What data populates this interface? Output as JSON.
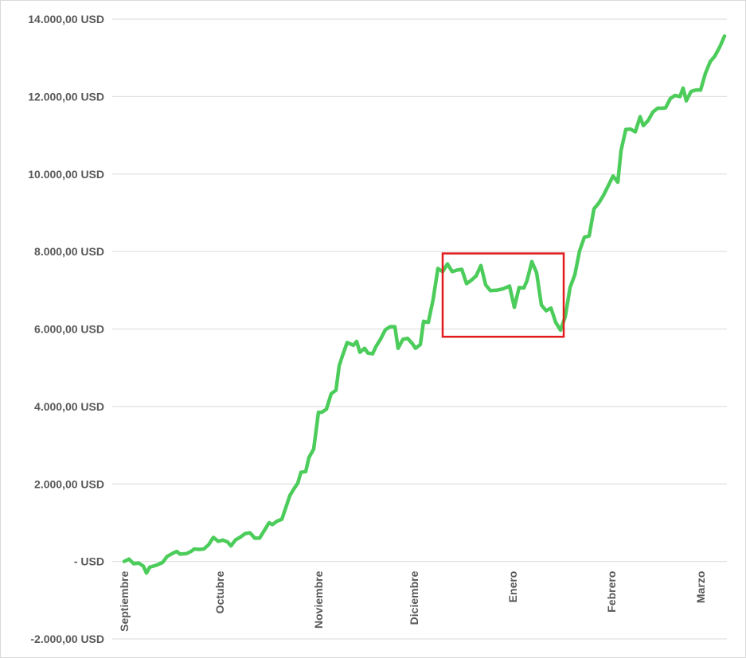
{
  "chart_data": {
    "type": "line",
    "title": "",
    "xlabel": "",
    "ylabel": "",
    "grid": true,
    "legend": "none",
    "ylim": [
      -2000,
      14000
    ],
    "yticks": [
      {
        "value": 14000,
        "label": "14.000,00 USD"
      },
      {
        "value": 12000,
        "label": "12.000,00 USD"
      },
      {
        "value": 10000,
        "label": "10.000,00 USD"
      },
      {
        "value": 8000,
        "label": "8.000,00 USD"
      },
      {
        "value": 6000,
        "label": "6.000,00 USD"
      },
      {
        "value": 4000,
        "label": "4.000,00 USD"
      },
      {
        "value": 2000,
        "label": "2.000,00 USD"
      },
      {
        "value": 0,
        "label": "-   USD"
      },
      {
        "value": -2000,
        "label": "-2.000,00 USD"
      }
    ],
    "month_ticks": [
      {
        "day": 0,
        "label": "Septiembre"
      },
      {
        "day": 30,
        "label": "Octubre"
      },
      {
        "day": 61,
        "label": "Noviembre"
      },
      {
        "day": 91,
        "label": "Diciembre"
      },
      {
        "day": 122,
        "label": "Enero"
      },
      {
        "day": 153,
        "label": "Febrero"
      },
      {
        "day": 181,
        "label": "Marzo"
      }
    ],
    "x_range_days": [
      0,
      193
    ],
    "series": [
      {
        "color": "#4ccc5a",
        "points": [
          [
            0,
            0
          ],
          [
            1.5,
            60
          ],
          [
            3,
            -60
          ],
          [
            4.5,
            -40
          ],
          [
            6,
            -120
          ],
          [
            7,
            -300
          ],
          [
            8,
            -150
          ],
          [
            10,
            -100
          ],
          [
            12,
            -30
          ],
          [
            13.5,
            130
          ],
          [
            15,
            200
          ],
          [
            16.5,
            260
          ],
          [
            17.5,
            190
          ],
          [
            19.5,
            200
          ],
          [
            21,
            260
          ],
          [
            22,
            320
          ],
          [
            23.5,
            310
          ],
          [
            25,
            320
          ],
          [
            26.5,
            430
          ],
          [
            28,
            620
          ],
          [
            29.5,
            520
          ],
          [
            31,
            550
          ],
          [
            32.5,
            500
          ],
          [
            33.5,
            400
          ],
          [
            35,
            560
          ],
          [
            36.5,
            630
          ],
          [
            38,
            720
          ],
          [
            39.5,
            740
          ],
          [
            41,
            600
          ],
          [
            42.5,
            600
          ],
          [
            44,
            800
          ],
          [
            45.5,
            1000
          ],
          [
            46.5,
            950
          ],
          [
            48,
            1040
          ],
          [
            49.5,
            1090
          ],
          [
            51,
            1450
          ],
          [
            52,
            1700
          ],
          [
            53.5,
            1900
          ],
          [
            54.5,
            2020
          ],
          [
            55.5,
            2300
          ],
          [
            57,
            2320
          ],
          [
            58,
            2680
          ],
          [
            59.5,
            2900
          ],
          [
            61,
            3850
          ],
          [
            62,
            3850
          ],
          [
            63.5,
            3930
          ],
          [
            65,
            4330
          ],
          [
            66.5,
            4420
          ],
          [
            67.5,
            5050
          ],
          [
            68.5,
            5300
          ],
          [
            70,
            5650
          ],
          [
            72,
            5580
          ],
          [
            73,
            5680
          ],
          [
            74,
            5400
          ],
          [
            75.5,
            5500
          ],
          [
            76.5,
            5380
          ],
          [
            78,
            5360
          ],
          [
            79,
            5540
          ],
          [
            80.5,
            5740
          ],
          [
            82,
            5980
          ],
          [
            83.5,
            6060
          ],
          [
            85,
            6060
          ],
          [
            86,
            5500
          ],
          [
            87.5,
            5730
          ],
          [
            89,
            5760
          ],
          [
            90.5,
            5620
          ],
          [
            91.5,
            5500
          ],
          [
            93,
            5600
          ],
          [
            94,
            6200
          ],
          [
            95.5,
            6170
          ],
          [
            97,
            6760
          ],
          [
            98.5,
            7560
          ],
          [
            100,
            7480
          ],
          [
            101.5,
            7680
          ],
          [
            103,
            7480
          ],
          [
            104.5,
            7520
          ],
          [
            106,
            7540
          ],
          [
            107.5,
            7170
          ],
          [
            109,
            7260
          ],
          [
            110.5,
            7370
          ],
          [
            112,
            7640
          ],
          [
            113.5,
            7140
          ],
          [
            115,
            6990
          ],
          [
            117,
            7000
          ],
          [
            119,
            7040
          ],
          [
            121,
            7110
          ],
          [
            122.5,
            6560
          ],
          [
            124,
            7070
          ],
          [
            125.5,
            7060
          ],
          [
            126.5,
            7250
          ],
          [
            128,
            7740
          ],
          [
            129.5,
            7450
          ],
          [
            131,
            6620
          ],
          [
            132.5,
            6470
          ],
          [
            134,
            6540
          ],
          [
            135.5,
            6170
          ],
          [
            137,
            5970
          ],
          [
            138.5,
            6320
          ],
          [
            140,
            7070
          ],
          [
            141.5,
            7400
          ],
          [
            143,
            8020
          ],
          [
            144.5,
            8370
          ],
          [
            146,
            8400
          ],
          [
            147.5,
            9100
          ],
          [
            149,
            9250
          ],
          [
            150.5,
            9450
          ],
          [
            152,
            9700
          ],
          [
            153.5,
            9950
          ],
          [
            155,
            9790
          ],
          [
            156,
            10600
          ],
          [
            157.5,
            11150
          ],
          [
            159,
            11160
          ],
          [
            160.5,
            11090
          ],
          [
            162,
            11480
          ],
          [
            163,
            11250
          ],
          [
            164.5,
            11380
          ],
          [
            166,
            11600
          ],
          [
            167.5,
            11700
          ],
          [
            169,
            11700
          ],
          [
            170,
            11710
          ],
          [
            171.5,
            11950
          ],
          [
            173,
            12030
          ],
          [
            174.5,
            12000
          ],
          [
            175.5,
            12220
          ],
          [
            176.5,
            11890
          ],
          [
            178,
            12130
          ],
          [
            179.5,
            12170
          ],
          [
            181,
            12170
          ],
          [
            182.5,
            12600
          ],
          [
            184,
            12900
          ],
          [
            185.5,
            13050
          ],
          [
            187,
            13280
          ],
          [
            188.5,
            13560
          ]
        ]
      }
    ],
    "annotations": [
      {
        "type": "rectangle",
        "color": "#e31a1c",
        "x_days": [
          100,
          138
        ],
        "y_values": [
          5800,
          7950
        ]
      }
    ]
  }
}
